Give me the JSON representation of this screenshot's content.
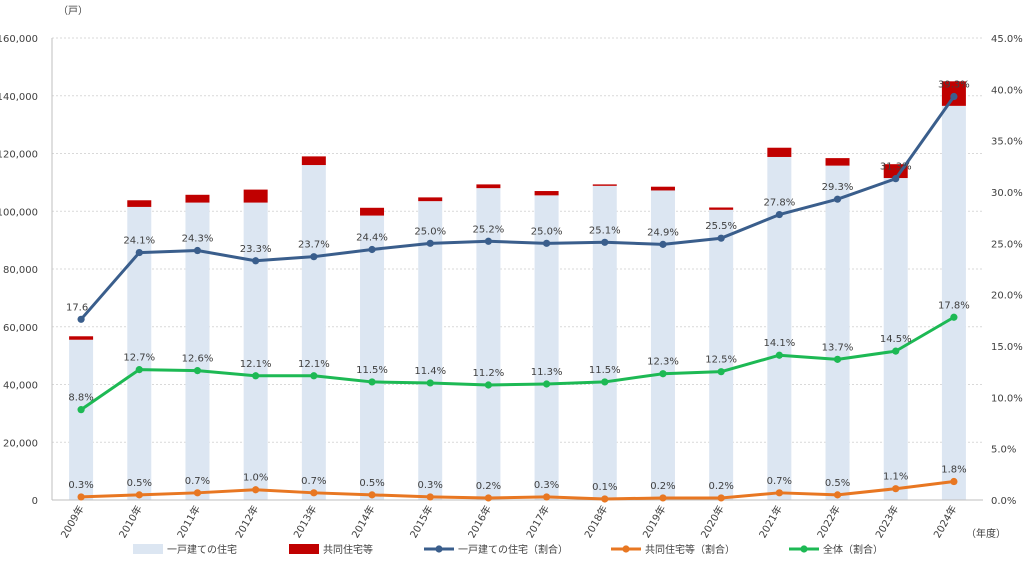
{
  "chart_data": {
    "type": "bar",
    "y_unit": "（戸）",
    "x_unit": "（年度）",
    "categories": [
      "2009年",
      "2010年",
      "2011年",
      "2012年",
      "2013年",
      "2014年",
      "2015年",
      "2016年",
      "2017年",
      "2018年",
      "2019年",
      "2020年",
      "2021年",
      "2022年",
      "2023年",
      "2024年"
    ],
    "ylim": [
      0,
      160000
    ],
    "y_ticks": [
      "0",
      "20,000",
      "40,000",
      "60,000",
      "80,000",
      "100,000",
      "120,000",
      "140,000",
      "160,000"
    ],
    "y2lim": [
      0,
      45
    ],
    "y2_ticks": [
      "0.0%",
      "5.0%",
      "10.0%",
      "15.0%",
      "20.0%",
      "25.0%",
      "30.0%",
      "35.0%",
      "40.0%",
      "45.0%"
    ],
    "grid": true,
    "legend_position": "bottom",
    "colors": {
      "detached_bar": "#dce6f2",
      "collective_bar": "#c00000",
      "detached_ratio": "#3a5e8c",
      "collective_ratio": "#e87722",
      "total_ratio": "#1db954"
    },
    "bar_series": [
      {
        "name": "一戸建ての住宅",
        "values": [
          55500,
          101500,
          103000,
          103000,
          116000,
          98500,
          103500,
          108000,
          105500,
          108800,
          107200,
          100500,
          118800,
          115800,
          111500,
          136500
        ]
      },
      {
        "name": "共同住宅等",
        "values": [
          1200,
          2300,
          2700,
          4500,
          3000,
          2700,
          1300,
          1300,
          1500,
          500,
          1300,
          800,
          3200,
          2600,
          4800,
          8500
        ]
      }
    ],
    "line_series": [
      {
        "name": "一戸建ての住宅（割合）",
        "values": [
          17.6,
          24.1,
          24.3,
          23.3,
          23.7,
          24.4,
          25.0,
          25.2,
          25.0,
          25.1,
          24.9,
          25.5,
          27.8,
          29.3,
          31.3,
          39.3
        ],
        "labels": [
          "17.6",
          "24.1%",
          "24.3%",
          "23.3%",
          "23.7%",
          "24.4%",
          "25.0%",
          "25.2%",
          "25.0%",
          "25.1%",
          "24.9%",
          "25.5%",
          "27.8%",
          "29.3%",
          "31.3%",
          "39.3%"
        ]
      },
      {
        "name": "共同住宅等（割合）",
        "values": [
          0.3,
          0.5,
          0.7,
          1.0,
          0.7,
          0.5,
          0.3,
          0.2,
          0.3,
          0.1,
          0.2,
          0.2,
          0.7,
          0.5,
          1.1,
          1.8
        ],
        "labels": [
          "0.3%",
          "0.5%",
          "0.7%",
          "1.0%",
          "0.7%",
          "0.5%",
          "0.3%",
          "0.2%",
          "0.3%",
          "0.1%",
          "0.2%",
          "0.2%",
          "0.7%",
          "0.5%",
          "1.1%",
          "1.8%"
        ]
      },
      {
        "name": "全体（割合）",
        "values": [
          8.8,
          12.7,
          12.6,
          12.1,
          12.1,
          11.5,
          11.4,
          11.2,
          11.3,
          11.5,
          12.3,
          12.5,
          14.1,
          13.7,
          14.5,
          17.8
        ],
        "labels": [
          "8.8%",
          "12.7%",
          "12.6%",
          "12.1%",
          "12.1%",
          "11.5%",
          "11.4%",
          "11.2%",
          "11.3%",
          "11.5%",
          "12.3%",
          "12.5%",
          "14.1%",
          "13.7%",
          "14.5%",
          "17.8%"
        ]
      }
    ]
  }
}
